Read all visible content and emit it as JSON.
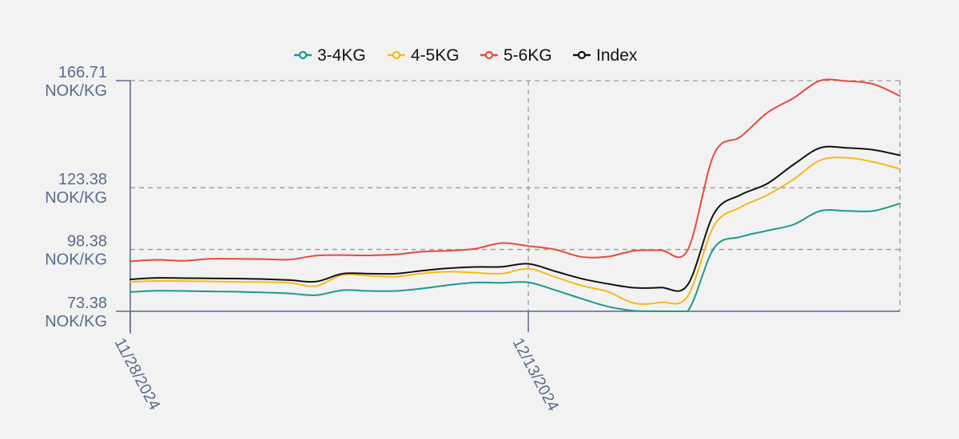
{
  "chart_data": {
    "type": "line",
    "title": "",
    "xlabel": "",
    "ylabel": "",
    "x_ticks": [
      "11/28/2024",
      "12/13/2024"
    ],
    "y_ticks": [
      {
        "value": 73.38,
        "label": "73.38",
        "unit": "NOK/KG"
      },
      {
        "value": 98.38,
        "label": "98.38",
        "unit": "NOK/KG"
      },
      {
        "value": 123.38,
        "label": "123.38",
        "unit": "NOK/KG"
      },
      {
        "value": 166.71,
        "label": "166.71",
        "unit": "NOK/KG"
      }
    ],
    "ylim": [
      73.38,
      166.71
    ],
    "xlim": [
      "2024-11-28",
      "2024-12-27"
    ],
    "grid": true,
    "legend_position": "top-center",
    "x": [
      "2024-11-28",
      "2024-11-29",
      "2024-11-30",
      "2024-12-01",
      "2024-12-02",
      "2024-12-03",
      "2024-12-04",
      "2024-12-05",
      "2024-12-06",
      "2024-12-07",
      "2024-12-08",
      "2024-12-09",
      "2024-12-10",
      "2024-12-11",
      "2024-12-12",
      "2024-12-13",
      "2024-12-14",
      "2024-12-15",
      "2024-12-16",
      "2024-12-17",
      "2024-12-18",
      "2024-12-19",
      "2024-12-20",
      "2024-12-21",
      "2024-12-22",
      "2024-12-23",
      "2024-12-24",
      "2024-12-25",
      "2024-12-26",
      "2024-12-27"
    ],
    "series": [
      {
        "name": "3-4KG",
        "color": "#1a9a8b",
        "values": [
          81.2,
          81.7,
          81.6,
          81.4,
          81.3,
          81.0,
          80.6,
          79.9,
          81.9,
          81.6,
          81.6,
          82.6,
          84.0,
          85.0,
          84.9,
          85.1,
          82.0,
          78.5,
          75.3,
          73.6,
          73.4,
          73.4,
          99.0,
          103.5,
          106.0,
          108.5,
          114.0,
          114.0,
          114.0,
          117.0
        ]
      },
      {
        "name": "4-5KG",
        "color": "#f5b918",
        "values": [
          85.3,
          85.7,
          85.6,
          85.5,
          85.3,
          85.2,
          84.9,
          83.6,
          88.1,
          87.7,
          87.4,
          88.7,
          89.4,
          89.0,
          88.6,
          90.6,
          87.3,
          83.8,
          81.3,
          76.6,
          77.0,
          79.4,
          108.0,
          115.5,
          120.4,
          126.8,
          134.5,
          135.5,
          133.8,
          131.0
        ]
      },
      {
        "name": "5-6KG",
        "color": "#e84a3c",
        "values": [
          93.6,
          94.2,
          93.8,
          94.6,
          94.6,
          94.5,
          94.3,
          95.9,
          96.1,
          96.0,
          96.4,
          97.5,
          97.9,
          98.7,
          101.0,
          99.8,
          98.4,
          95.4,
          95.5,
          97.9,
          98.1,
          98.1,
          137.0,
          144.0,
          153.7,
          159.7,
          166.7,
          166.5,
          165.3,
          160.5
        ]
      },
      {
        "name": "Index",
        "color": "#111111",
        "values": [
          86.3,
          86.9,
          86.8,
          86.7,
          86.6,
          86.4,
          86.0,
          85.4,
          88.6,
          88.6,
          88.6,
          89.8,
          90.8,
          91.3,
          91.4,
          92.6,
          89.6,
          86.6,
          84.5,
          82.9,
          83.0,
          84.0,
          113.0,
          120.5,
          125.0,
          132.8,
          139.5,
          139.5,
          138.7,
          136.5
        ]
      }
    ]
  }
}
